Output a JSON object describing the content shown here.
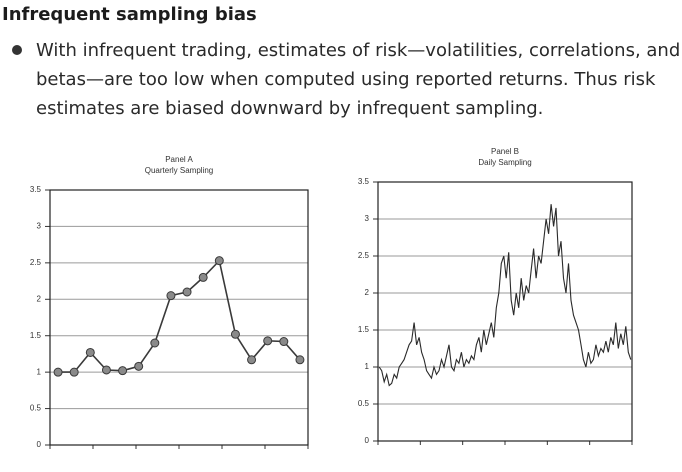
{
  "header": {
    "title": "Infrequent sampling bias"
  },
  "bullet": {
    "lines": [
      "With infrequent trading, estimates of risk—volatilities, correlations, and",
      "betas—are too low when computed using reported returns. Thus risk",
      "estimates are biased downward by infrequent sampling."
    ]
  },
  "chart_data": [
    {
      "type": "line",
      "title": "Panel A",
      "subtitle": "Quarterly Sampling",
      "markers": true,
      "color": "#3a3a3a",
      "marker_color": "#8a8a8a",
      "values": [
        1,
        1,
        1.27,
        1.03,
        1.02,
        1.08,
        1.4,
        2.05,
        2.1,
        2.3,
        2.53,
        1.52,
        1.17,
        1.43,
        1.42,
        1.17
      ],
      "ylim": [
        0,
        3.5
      ],
      "yticks": [
        0,
        0.5,
        1,
        1.5,
        2,
        2.5,
        3,
        3.5
      ],
      "grid": true
    },
    {
      "type": "line",
      "title": "Panel B",
      "subtitle": "Daily Sampling",
      "markers": false,
      "color": "#2a2a2a",
      "values": [
        1.0,
        0.95,
        0.8,
        0.9,
        0.75,
        0.78,
        0.9,
        0.85,
        1.0,
        1.05,
        1.1,
        1.2,
        1.3,
        1.35,
        1.6,
        1.3,
        1.4,
        1.2,
        1.1,
        0.95,
        0.9,
        0.85,
        1.0,
        0.9,
        0.95,
        1.1,
        1.0,
        1.15,
        1.3,
        1.0,
        0.95,
        1.1,
        1.05,
        1.2,
        1.0,
        1.1,
        1.05,
        1.15,
        1.1,
        1.3,
        1.4,
        1.2,
        1.5,
        1.3,
        1.45,
        1.6,
        1.4,
        1.8,
        2.0,
        2.4,
        2.5,
        2.2,
        2.55,
        1.9,
        1.7,
        2.0,
        1.8,
        2.2,
        1.9,
        2.1,
        2.0,
        2.3,
        2.6,
        2.2,
        2.5,
        2.4,
        2.7,
        3.0,
        2.8,
        3.2,
        2.9,
        3.15,
        2.5,
        2.7,
        2.2,
        2.0,
        2.4,
        1.9,
        1.7,
        1.6,
        1.5,
        1.3,
        1.1,
        1.0,
        1.2,
        1.05,
        1.1,
        1.3,
        1.15,
        1.25,
        1.2,
        1.35,
        1.2,
        1.4,
        1.3,
        1.6,
        1.25,
        1.45,
        1.3,
        1.55,
        1.2,
        1.1
      ],
      "ylim": [
        0,
        3.5
      ],
      "yticks": [
        0,
        0.5,
        1,
        1.5,
        2,
        2.5,
        3,
        3.5
      ],
      "grid": true
    }
  ]
}
